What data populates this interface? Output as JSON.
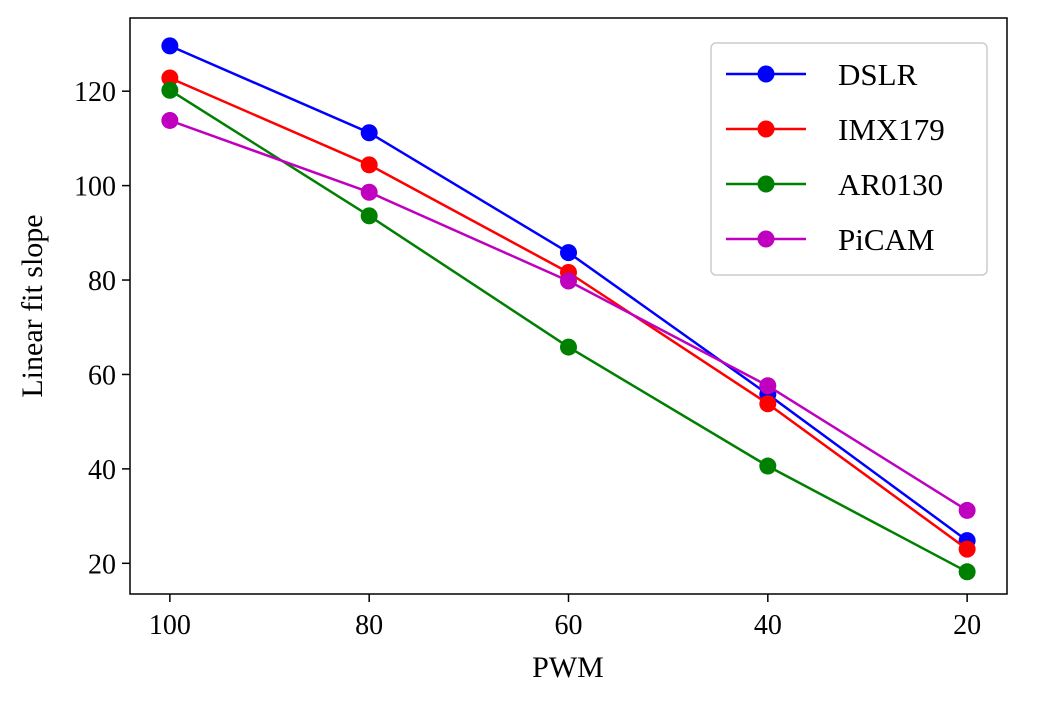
{
  "chart_data": {
    "type": "line",
    "title": "",
    "xlabel": "PWM",
    "ylabel": "Linear fit slope",
    "x": [
      100,
      80,
      60,
      40,
      20
    ],
    "x_tick_labels": [
      "100",
      "80",
      "60",
      "40",
      "20"
    ],
    "x_reversed": true,
    "xlim": [
      104,
      16
    ],
    "ylim": [
      13.5,
      135.5
    ],
    "y_ticks": [
      20,
      40,
      60,
      80,
      100,
      120
    ],
    "y_tick_labels": [
      "20",
      "40",
      "60",
      "80",
      "100",
      "120"
    ],
    "grid": false,
    "legend_position": "top-right",
    "series": [
      {
        "name": "DSLR",
        "color": "#0000ff",
        "values": [
          129.6,
          111.2,
          85.8,
          55.8,
          24.8
        ]
      },
      {
        "name": "IMX179",
        "color": "#ff0000",
        "values": [
          122.8,
          104.4,
          81.6,
          53.8,
          23.0
        ]
      },
      {
        "name": "AR0130",
        "color": "#008000",
        "values": [
          120.2,
          93.6,
          65.8,
          40.6,
          18.2
        ]
      },
      {
        "name": "PiCAM",
        "color": "#bf00bf",
        "values": [
          113.8,
          98.6,
          79.8,
          57.6,
          31.2
        ]
      }
    ]
  }
}
